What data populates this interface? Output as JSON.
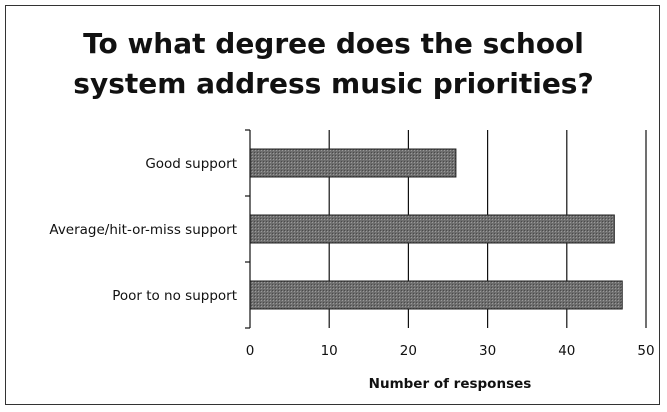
{
  "chart_data": {
    "type": "bar",
    "orientation": "horizontal",
    "title_lines": [
      "To what degree does the school",
      "system address music priorities?"
    ],
    "categories": [
      "Good support",
      "Average/hit-or-miss support",
      "Poor to no support"
    ],
    "values": [
      26,
      46,
      47
    ],
    "xlabel": "Number of responses",
    "ylabel": "",
    "xlim": [
      0,
      50
    ],
    "xticks": [
      0,
      10,
      20,
      30,
      40,
      50
    ],
    "grid": true,
    "legend": "none",
    "bar_color": "#6e6e6e"
  }
}
